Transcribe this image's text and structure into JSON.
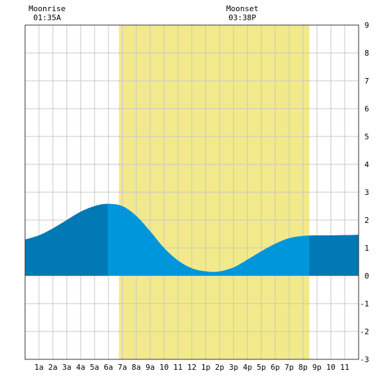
{
  "chart_data": {
    "type": "area",
    "title": "",
    "xlabel": "",
    "ylabel": "",
    "x_tick_labels": [
      "1a",
      "2a",
      "3a",
      "4a",
      "5a",
      "6a",
      "7a",
      "8a",
      "9a",
      "10",
      "11",
      "12",
      "1p",
      "2p",
      "3p",
      "4p",
      "5p",
      "6p",
      "7p",
      "8p",
      "9p",
      "10",
      "11"
    ],
    "xlim": [
      0,
      24
    ],
    "ylim": [
      -3,
      9
    ],
    "y_ticks": [
      -3,
      -2,
      -1,
      0,
      1,
      2,
      3,
      4,
      5,
      6,
      7,
      8,
      9
    ],
    "grid": true,
    "daylight": {
      "start_hour": 6.75,
      "end_hour": 20.45,
      "color": "#f2e98c"
    },
    "series": [
      {
        "x": [
          0,
          1,
          2,
          3,
          4,
          5,
          5.95,
          7,
          8,
          9,
          10,
          11,
          12,
          13,
          13.9,
          15,
          16,
          17,
          18,
          19,
          20,
          21,
          22,
          23,
          24
        ],
        "values": [
          1.3,
          1.45,
          1.7,
          2.0,
          2.3,
          2.5,
          2.58,
          2.5,
          2.15,
          1.6,
          1.0,
          0.55,
          0.27,
          0.16,
          0.15,
          0.3,
          0.58,
          0.88,
          1.15,
          1.35,
          1.43,
          1.45,
          1.45,
          1.46,
          1.47
        ]
      }
    ],
    "annotations": [
      {
        "label": "Moonrise",
        "time": "01:35A",
        "hour": 1.583
      },
      {
        "label": "Moonset",
        "time": "03:38P",
        "hour": 15.633
      }
    ],
    "colors": {
      "fill_dark": "#0079b5",
      "fill_light": "#0096dc",
      "grid": "#c8c8c8",
      "border": "#333333"
    },
    "dark_ranges": [
      [
        0,
        5.95
      ],
      [
        20.45,
        24
      ]
    ]
  }
}
